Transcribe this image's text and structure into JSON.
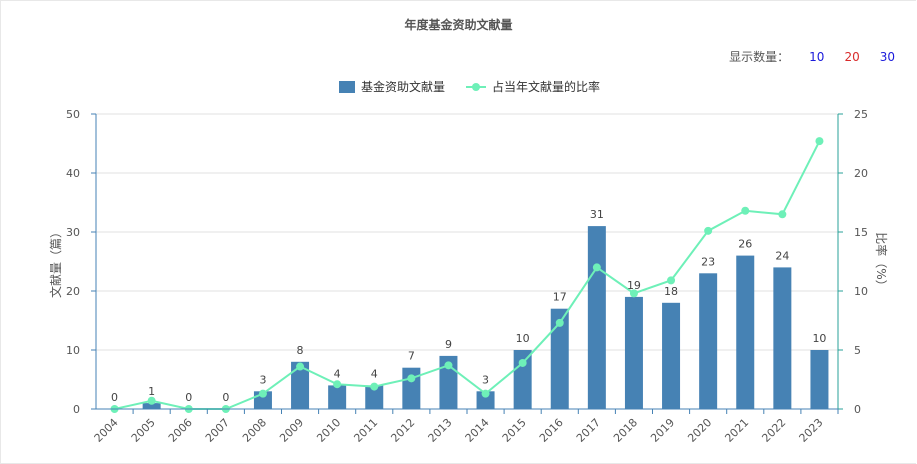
{
  "title": "年度基金资助文献量",
  "count_selector": {
    "label": "显示数量：",
    "options": [
      {
        "label": "10",
        "color": "#1a1adb"
      },
      {
        "label": "20",
        "color": "#d92b2b"
      },
      {
        "label": "30",
        "color": "#1a1adb"
      }
    ]
  },
  "chart_data": {
    "type": "bar",
    "categories": [
      "2004",
      "2005",
      "2006",
      "2007",
      "2008",
      "2009",
      "2010",
      "2011",
      "2012",
      "2013",
      "2014",
      "2015",
      "2016",
      "2017",
      "2018",
      "2019",
      "2020",
      "2021",
      "2022",
      "2023"
    ],
    "series": [
      {
        "name": "基金资助文献量",
        "type": "bar",
        "axis": "left",
        "color": "#4682b4",
        "values": [
          0,
          1,
          0,
          0,
          3,
          8,
          4,
          4,
          7,
          9,
          3,
          10,
          17,
          31,
          19,
          18,
          23,
          26,
          24,
          10
        ]
      },
      {
        "name": "占当年文献量的比率",
        "type": "line",
        "axis": "right",
        "color": "#6ef0b8",
        "values": [
          0,
          0.7,
          0,
          0,
          1.3,
          3.6,
          2.1,
          1.9,
          2.6,
          3.7,
          1.3,
          3.9,
          7.3,
          12.0,
          9.8,
          10.9,
          15.1,
          16.8,
          16.5,
          22.7
        ]
      }
    ],
    "ylabel": "文献量（篇）",
    "y2label": "比率（%）",
    "ylim": [
      0,
      50
    ],
    "y2lim": [
      0,
      25
    ],
    "yticks": [
      0,
      10,
      20,
      30,
      40,
      50
    ],
    "y2ticks": [
      0,
      5,
      10,
      15,
      20,
      25
    ],
    "grid": true,
    "legend": "top-center"
  }
}
